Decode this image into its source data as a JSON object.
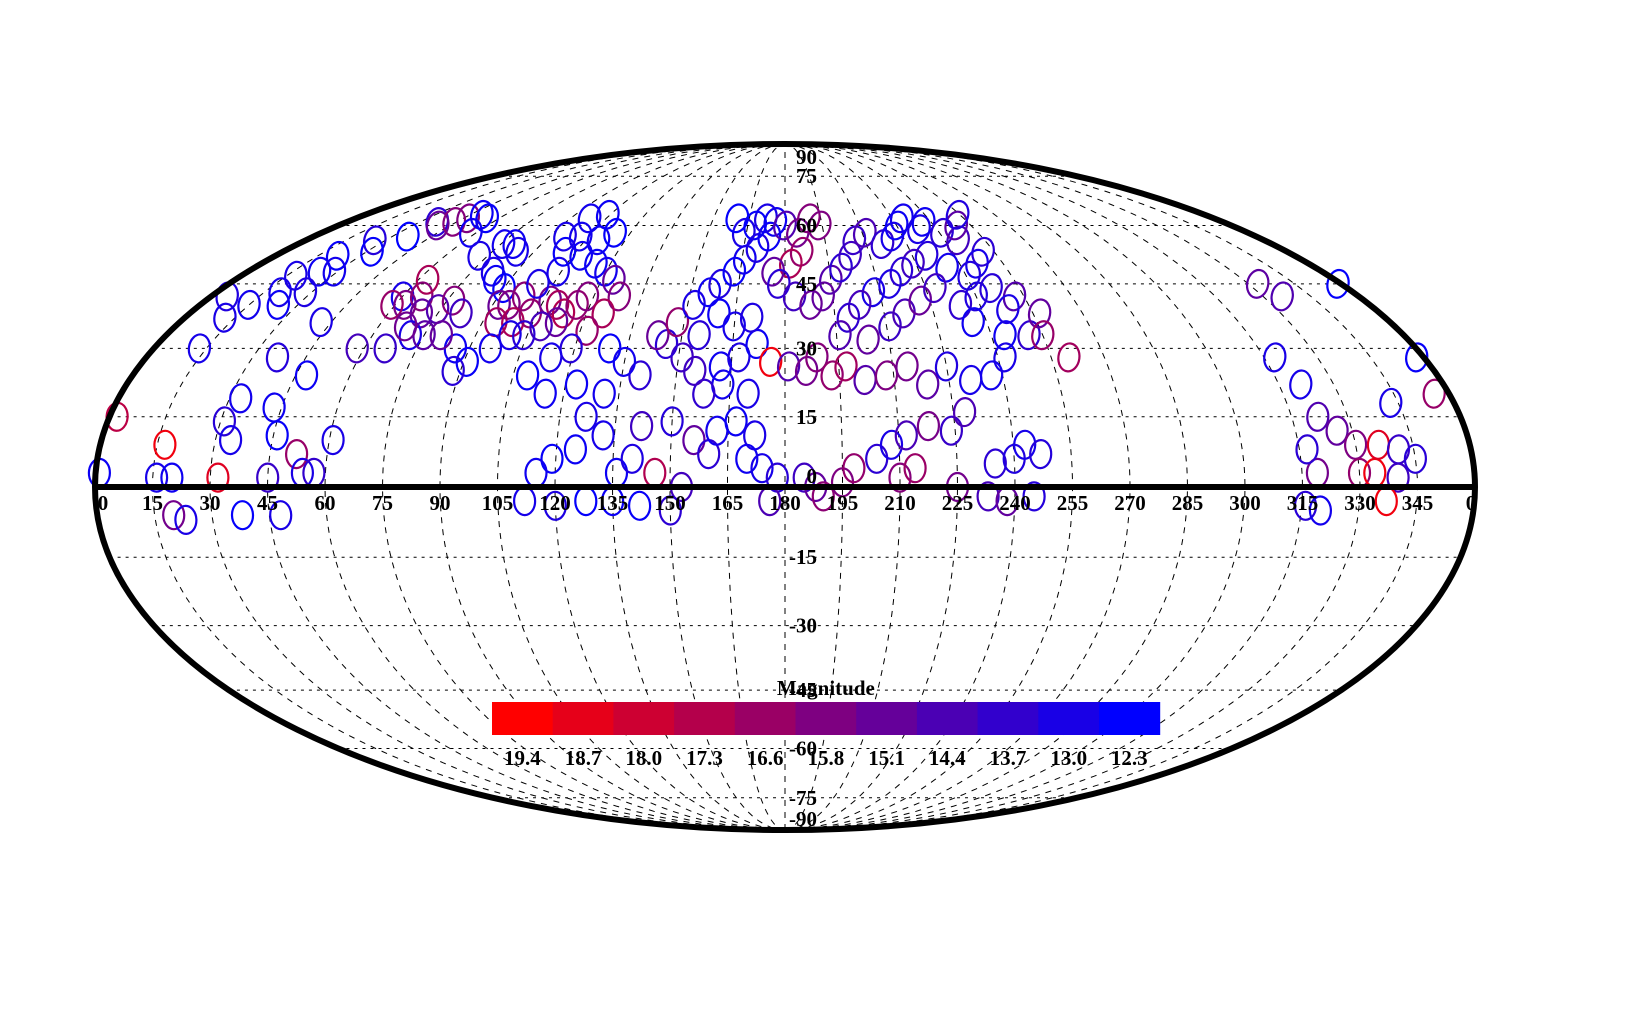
{
  "chart_data": {
    "type": "scatter",
    "projection": "mollweide",
    "grid": true,
    "lon_ticks": [
      "0",
      "15",
      "30",
      "45",
      "60",
      "75",
      "90",
      "105",
      "120",
      "135",
      "150",
      "165",
      "180",
      "195",
      "210",
      "225",
      "240",
      "255",
      "270",
      "285",
      "300",
      "315",
      "330",
      "345",
      "0"
    ],
    "lat_ticks": [
      "90",
      "75",
      "60",
      "45",
      "30",
      "15",
      "0",
      "-15",
      "-30",
      "-45",
      "-60",
      "-75",
      "-90"
    ],
    "colorbar": {
      "title": "Magnitude",
      "tick_labels": [
        "19.4",
        "18.7",
        "18.0",
        "17.3",
        "16.6",
        "15.8",
        "15.1",
        "14.4",
        "13.7",
        "13.0",
        "12.3"
      ],
      "range": [
        12.3,
        19.4
      ],
      "color_low_mag": "#0000ff",
      "color_high_mag": "#ff0000"
    },
    "points": [
      [
        5,
        42,
        13.2
      ],
      [
        2,
        15,
        17.5
      ],
      [
        1,
        3,
        12.6
      ],
      [
        12,
        37,
        13.0
      ],
      [
        15,
        40,
        12.8
      ],
      [
        13,
        30,
        12.9
      ],
      [
        18,
        47,
        13.0
      ],
      [
        22,
        52,
        12.5
      ],
      [
        26,
        56,
        13.3
      ],
      [
        24,
        48,
        12.7
      ],
      [
        20,
        43,
        12.9
      ],
      [
        24,
        40,
        12.6
      ],
      [
        28,
        43,
        13.1
      ],
      [
        29,
        48,
        12.8
      ],
      [
        32,
        53,
        12.4
      ],
      [
        36,
        57,
        12.3
      ],
      [
        37,
        61,
        13.5
      ],
      [
        40,
        60,
        15.2
      ],
      [
        44,
        61,
        16.0
      ],
      [
        47,
        62,
        15.8
      ],
      [
        50,
        63,
        12.6
      ],
      [
        55,
        62,
        12.5
      ],
      [
        58,
        58,
        12.7
      ],
      [
        17,
        9,
        19.0
      ],
      [
        16,
        2,
        12.9
      ],
      [
        20,
        2,
        12.7
      ],
      [
        20,
        -6,
        15.5
      ],
      [
        23,
        -7,
        13.0
      ],
      [
        32,
        2,
        18.5
      ],
      [
        31,
        14,
        13.4
      ],
      [
        33,
        19,
        12.8
      ],
      [
        34,
        10,
        12.9
      ],
      [
        37,
        28,
        13.3
      ],
      [
        42,
        36,
        13.0
      ],
      [
        43,
        17,
        12.7
      ],
      [
        46,
        11,
        12.5
      ],
      [
        45,
        2,
        13.8
      ],
      [
        48,
        24,
        12.6
      ],
      [
        52,
        7,
        16.5
      ],
      [
        54,
        3,
        13.0
      ],
      [
        48,
        -6,
        13.0
      ],
      [
        38,
        -6,
        12.4
      ],
      [
        57,
        3,
        13.7
      ],
      [
        61,
        10,
        13.0
      ],
      [
        58,
        30,
        14.2
      ],
      [
        60,
        42,
        12.9
      ],
      [
        63,
        40,
        15.7
      ],
      [
        66,
        42,
        16.1
      ],
      [
        63,
        46,
        17.0
      ],
      [
        59,
        40,
        16.5
      ],
      [
        70,
        38,
        15.0
      ],
      [
        74,
        39,
        14.5
      ],
      [
        77,
        41,
        16.0
      ],
      [
        72,
        52,
        13.0
      ],
      [
        76,
        55,
        12.8
      ],
      [
        80,
        55,
        12.7
      ],
      [
        84,
        53,
        12.9
      ],
      [
        82,
        48,
        13.0
      ],
      [
        85,
        46,
        12.6
      ],
      [
        90,
        44,
        12.4
      ],
      [
        92,
        40,
        15.2
      ],
      [
        95,
        40,
        15.8
      ],
      [
        98,
        42,
        16.2
      ],
      [
        94,
        36,
        16.8
      ],
      [
        99,
        36,
        17.0
      ],
      [
        103,
        38,
        16.4
      ],
      [
        107,
        41,
        15.5
      ],
      [
        110,
        40,
        16.9
      ],
      [
        113,
        38,
        17.2
      ],
      [
        116,
        40,
        16.3
      ],
      [
        118,
        42,
        15.9
      ],
      [
        112,
        36,
        15.1
      ],
      [
        108,
        35,
        14.2
      ],
      [
        104,
        33,
        13.5
      ],
      [
        100,
        33,
        13.0
      ],
      [
        96,
        30,
        12.8
      ],
      [
        91,
        27,
        12.5
      ],
      [
        88,
        25,
        13.4
      ],
      [
        86,
        30,
        12.7
      ],
      [
        66,
        30,
        13.8
      ],
      [
        71,
        33,
        13.0
      ],
      [
        75,
        33,
        14.8
      ],
      [
        80,
        33,
        15.1
      ],
      [
        82,
        38,
        14.0
      ],
      [
        68,
        35,
        15.4
      ],
      [
        100,
        45,
        13.0
      ],
      [
        104,
        48,
        12.9
      ],
      [
        108,
        52,
        12.7
      ],
      [
        101,
        53,
        12.5
      ],
      [
        98,
        62,
        12.8
      ],
      [
        104,
        63,
        12.6
      ],
      [
        96,
        57,
        13.0
      ],
      [
        102,
        57,
        12.8
      ],
      [
        110,
        56,
        12.7
      ],
      [
        114,
        58,
        12.4
      ],
      [
        115,
        50,
        12.6
      ],
      [
        120,
        48,
        12.8
      ],
      [
        124,
        46,
        15.0
      ],
      [
        128,
        42,
        16.0
      ],
      [
        125,
        38,
        17.0
      ],
      [
        122,
        34,
        16.5
      ],
      [
        119,
        30,
        13.3
      ],
      [
        114,
        28,
        12.9
      ],
      [
        109,
        24,
        12.5
      ],
      [
        115,
        20,
        12.7
      ],
      [
        123,
        22,
        12.6
      ],
      [
        131,
        20,
        12.8
      ],
      [
        127,
        15,
        13.0
      ],
      [
        132,
        11,
        12.9
      ],
      [
        125,
        8,
        12.6
      ],
      [
        119,
        6,
        12.5
      ],
      [
        115,
        3,
        12.7
      ],
      [
        112,
        -3,
        12.9
      ],
      [
        120,
        -4,
        13.1
      ],
      [
        128,
        -3,
        12.4
      ],
      [
        136,
        3,
        12.6
      ],
      [
        140,
        6,
        13.1
      ],
      [
        146,
        3,
        17.2
      ],
      [
        153,
        0,
        14.1
      ],
      [
        150,
        -5,
        13.5
      ],
      [
        142,
        -4,
        12.5
      ],
      [
        135,
        -3,
        12.6
      ],
      [
        142,
        13,
        14.0
      ],
      [
        150,
        14,
        13.3
      ],
      [
        156,
        10,
        15.0
      ],
      [
        160,
        7,
        13.5
      ],
      [
        162,
        12,
        12.8
      ],
      [
        167,
        14,
        12.6
      ],
      [
        172,
        11,
        13.0
      ],
      [
        170,
        6,
        12.7
      ],
      [
        174,
        4,
        12.9
      ],
      [
        178,
        2,
        13.4
      ],
      [
        176,
        -3,
        14.4
      ],
      [
        185,
        2,
        14.0
      ],
      [
        188,
        0,
        15.0
      ],
      [
        190,
        -2,
        16.2
      ],
      [
        195,
        1,
        15.8
      ],
      [
        198,
        4,
        16.4
      ],
      [
        204,
        6,
        13.5
      ],
      [
        208,
        9,
        13.0
      ],
      [
        212,
        11,
        14.3
      ],
      [
        218,
        13,
        15.6
      ],
      [
        224,
        12,
        13.8
      ],
      [
        228,
        16,
        14.4
      ],
      [
        235,
        5,
        13.5
      ],
      [
        240,
        6,
        13.2
      ],
      [
        243,
        9,
        12.9
      ],
      [
        247,
        7,
        13.3
      ],
      [
        210,
        2,
        16.0
      ],
      [
        214,
        4,
        16.6
      ],
      [
        225,
        0,
        15.5
      ],
      [
        233,
        -2,
        14.2
      ],
      [
        238,
        -3,
        15.0
      ],
      [
        245,
        -2,
        13.3
      ],
      [
        170,
        20,
        13.0
      ],
      [
        163,
        22,
        12.8
      ],
      [
        158,
        20,
        13.6
      ],
      [
        155,
        25,
        14.0
      ],
      [
        162,
        26,
        12.7
      ],
      [
        167,
        28,
        13.1
      ],
      [
        172,
        31,
        12.6
      ],
      [
        176,
        27,
        19.0
      ],
      [
        181,
        26,
        14.5
      ],
      [
        186,
        25,
        15.5
      ],
      [
        189,
        28,
        16.0
      ],
      [
        193,
        24,
        16.4
      ],
      [
        197,
        26,
        16.8
      ],
      [
        202,
        23,
        14.6
      ],
      [
        208,
        24,
        15.8
      ],
      [
        214,
        26,
        15.5
      ],
      [
        219,
        22,
        14.8
      ],
      [
        225,
        26,
        13.2
      ],
      [
        231,
        23,
        12.9
      ],
      [
        237,
        24,
        12.8
      ],
      [
        242,
        28,
        13.0
      ],
      [
        244,
        33,
        12.7
      ],
      [
        251,
        33,
        13.6
      ],
      [
        151,
        28,
        14.0
      ],
      [
        146,
        31,
        13.5
      ],
      [
        143,
        33,
        15.2
      ],
      [
        148,
        36,
        16.4
      ],
      [
        152,
        40,
        13.0
      ],
      [
        156,
        43,
        12.7
      ],
      [
        159,
        45,
        13.2
      ],
      [
        163,
        48,
        12.5
      ],
      [
        166,
        51,
        12.8
      ],
      [
        170,
        54,
        13.1
      ],
      [
        174,
        57,
        12.6
      ],
      [
        176,
        61,
        12.7
      ],
      [
        172,
        62,
        13.0
      ],
      [
        168,
        60,
        12.5
      ],
      [
        164,
        58,
        13.0
      ],
      [
        160,
        62,
        12.4
      ],
      [
        180,
        60,
        14.5
      ],
      [
        185,
        58,
        15.5
      ],
      [
        190,
        62,
        16.0
      ],
      [
        194,
        60,
        15.8
      ],
      [
        186,
        53,
        16.5
      ],
      [
        182,
        50,
        17.1
      ],
      [
        176,
        48,
        15.0
      ],
      [
        178,
        45,
        13.5
      ],
      [
        183,
        42,
        14.0
      ],
      [
        188,
        40,
        15.2
      ],
      [
        192,
        42,
        15.0
      ],
      [
        195,
        46,
        14.6
      ],
      [
        199,
        49,
        13.5
      ],
      [
        203,
        52,
        14.0
      ],
      [
        206,
        56,
        13.8
      ],
      [
        211,
        58,
        14.4
      ],
      [
        216,
        55,
        13.6
      ],
      [
        221,
        57,
        12.9
      ],
      [
        225,
        60,
        12.6
      ],
      [
        229,
        62,
        12.8
      ],
      [
        233,
        59,
        13.0
      ],
      [
        237,
        61,
        12.7
      ],
      [
        241,
        58,
        13.4
      ],
      [
        245,
        56,
        14.1
      ],
      [
        249,
        60,
        14.8
      ],
      [
        254,
        63,
        13.2
      ],
      [
        251,
        53,
        13.5
      ],
      [
        246,
        50,
        12.9
      ],
      [
        241,
        47,
        13.2
      ],
      [
        235,
        49,
        12.8
      ],
      [
        230,
        52,
        13.3
      ],
      [
        224,
        50,
        14.0
      ],
      [
        219,
        48,
        13.5
      ],
      [
        214,
        45,
        13.1
      ],
      [
        208,
        43,
        13.0
      ],
      [
        203,
        40,
        14.2
      ],
      [
        199,
        37,
        13.6
      ],
      [
        196,
        33,
        14.5
      ],
      [
        204,
        32,
        15.0
      ],
      [
        211,
        35,
        13.9
      ],
      [
        216,
        38,
        14.3
      ],
      [
        222,
        41,
        15.2
      ],
      [
        228,
        44,
        14.0
      ],
      [
        234,
        40,
        13.6
      ],
      [
        240,
        42,
        13.2
      ],
      [
        246,
        44,
        13.4
      ],
      [
        252,
        42,
        14.6
      ],
      [
        257,
        38,
        15.0
      ],
      [
        255,
        33,
        16.5
      ],
      [
        260,
        28,
        16.8
      ],
      [
        248,
        39,
        13.0
      ],
      [
        236,
        36,
        12.7
      ],
      [
        160,
        38,
        12.6
      ],
      [
        165,
        35,
        12.9
      ],
      [
        170,
        37,
        13.1
      ],
      [
        155,
        33,
        13.4
      ],
      [
        140,
        24,
        13.5
      ],
      [
        135,
        27,
        12.8
      ],
      [
        130,
        30,
        12.5
      ],
      [
        318,
        28,
        13.0
      ],
      [
        321,
        22,
        12.9
      ],
      [
        322,
        15,
        14.5
      ],
      [
        326,
        12,
        15.0
      ],
      [
        330,
        9,
        15.8
      ],
      [
        330,
        3,
        16.4
      ],
      [
        334,
        3,
        19.0
      ],
      [
        336,
        9,
        18.5
      ],
      [
        319,
        3,
        15.5
      ],
      [
        317,
        8,
        13.5
      ],
      [
        316,
        -4,
        13.4
      ],
      [
        320,
        -5,
        12.8
      ],
      [
        340,
        2,
        14.0
      ],
      [
        341,
        8,
        13.8
      ],
      [
        345,
        6,
        13.4
      ],
      [
        343,
        18,
        13.0
      ],
      [
        336,
        42,
        14.5
      ],
      [
        333,
        45,
        14.9
      ],
      [
        356,
        20,
        16.5
      ],
      [
        358,
        28,
        12.5
      ],
      [
        359,
        45,
        12.4
      ],
      [
        337,
        -3,
        19.0
      ]
    ]
  }
}
